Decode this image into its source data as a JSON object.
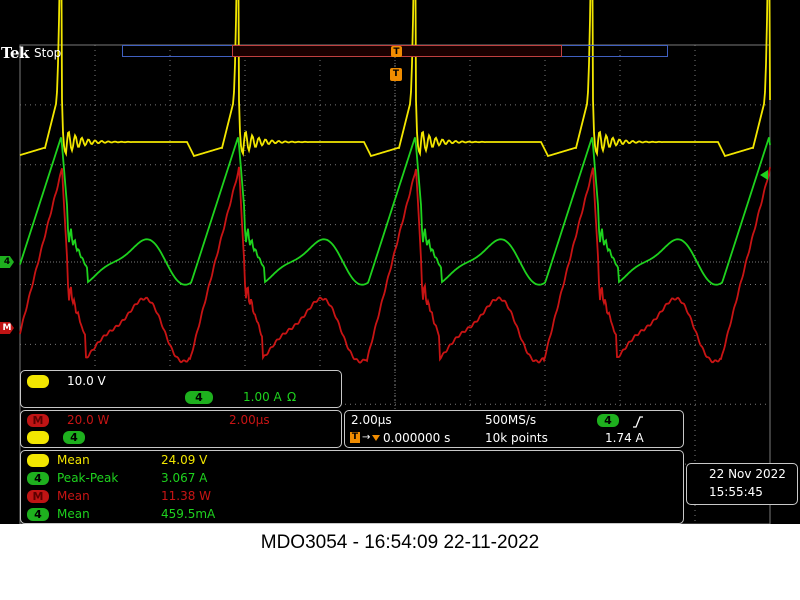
{
  "brand": {
    "logo": "Tek",
    "run_state": "Stop"
  },
  "trigger_marker": "T",
  "channel_markers": {
    "ch4": "4",
    "math": "M"
  },
  "channel_scale": {
    "ch1_label": "1",
    "ch1_value": "10.0 V",
    "ch4_label": "4",
    "ch4_value": "1.00 A",
    "ch4_unit_icon": "Ω"
  },
  "math": {
    "label": "M",
    "scale": "20.0 W",
    "time": "2.00µs",
    "src1": "1",
    "src2": "4"
  },
  "timebase": {
    "horizontal": "2.00µs",
    "sample_rate": "500MS/s",
    "trigger_position": "0.000000 s",
    "record_length": "10k points",
    "trigger_source": "4",
    "trigger_slope": "rising-edge-icon",
    "trigger_level": "1.74 A"
  },
  "measurements": [
    {
      "source": "1",
      "name": "Mean",
      "value": "24.09 V",
      "color": "#f2e600"
    },
    {
      "source": "4",
      "name": "Peak-Peak",
      "value": "3.067 A",
      "color": "#1ed21e"
    },
    {
      "source": "M",
      "name": "Mean",
      "value": "11.38 W",
      "color": "#c81414"
    },
    {
      "source": "4",
      "name": "Mean",
      "value": "459.5mA",
      "color": "#1ed21e"
    }
  ],
  "datetime": {
    "date": "22 Nov 2022",
    "time": "15:55:45"
  },
  "caption": "MDO3054 - 16:54:09   22-11-2022",
  "colors": {
    "ch1": "#f2e600",
    "ch4": "#1ed21e",
    "math": "#c81414",
    "grid": "#7a7a7a"
  }
}
